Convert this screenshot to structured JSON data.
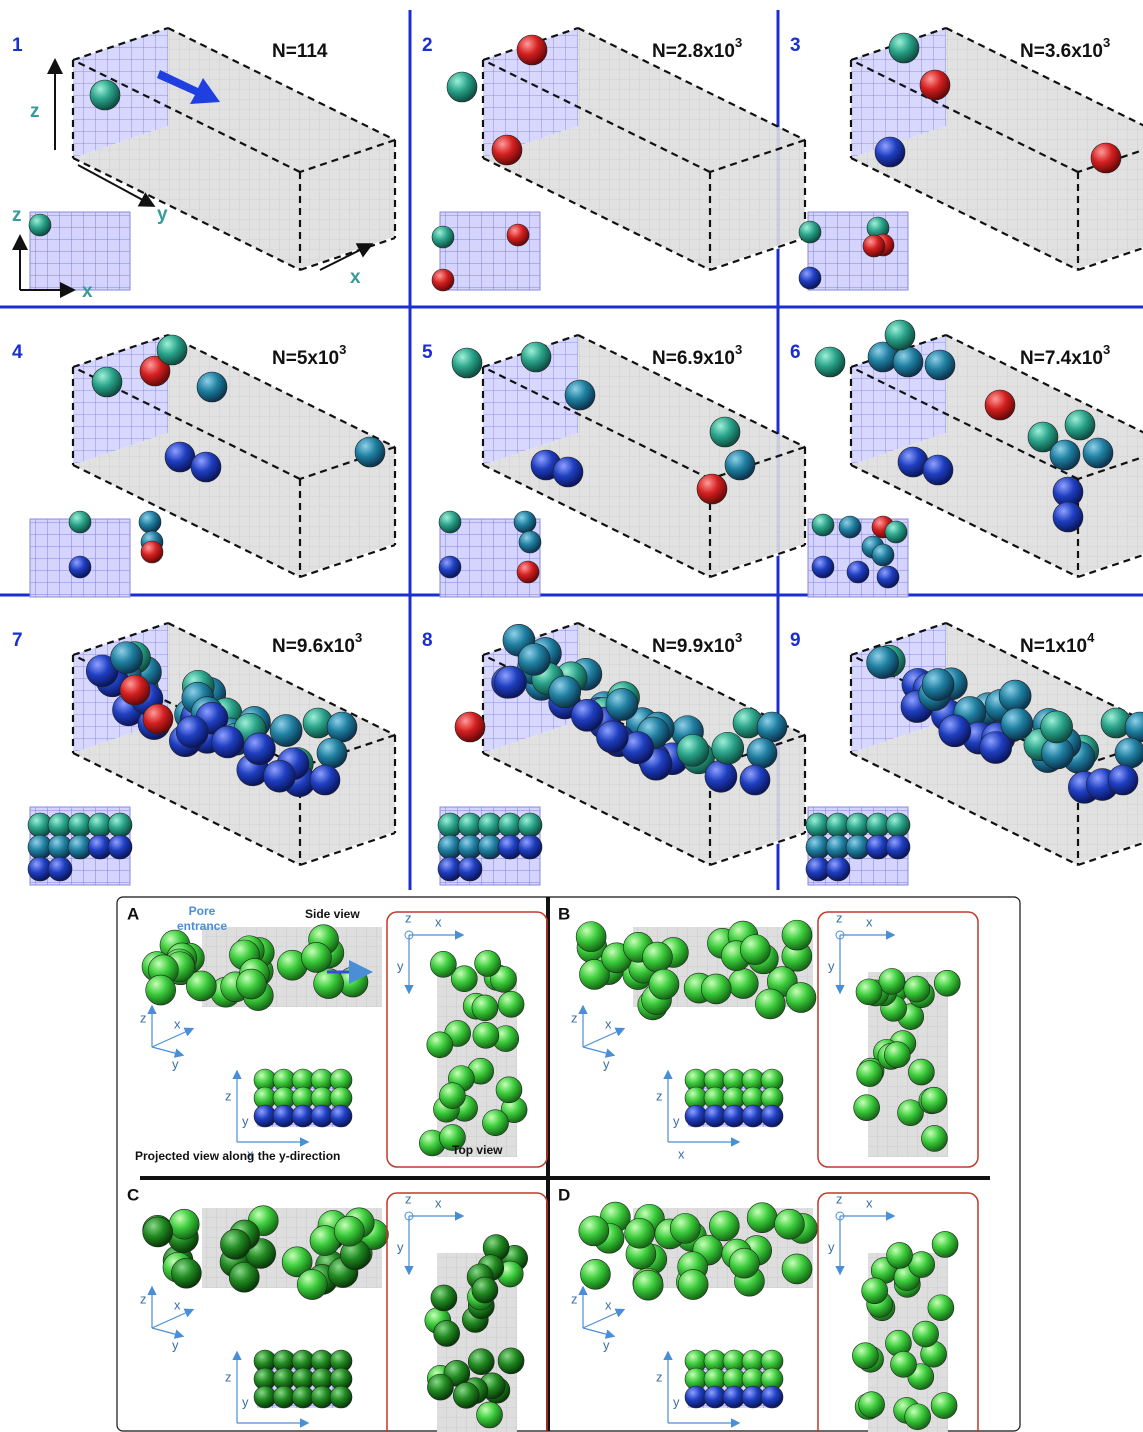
{
  "panels": [
    {
      "number": "1",
      "n_label": {
        "text": "N=114"
      }
    },
    {
      "number": "2",
      "n_label": {
        "text": "N=2.8x10",
        "exponent": "3"
      }
    },
    {
      "number": "3",
      "n_label": {
        "text": "N=3.6x10",
        "exponent": "3"
      }
    },
    {
      "number": "4",
      "n_label": {
        "text": "N=5x10",
        "exponent": "3"
      }
    },
    {
      "number": "5",
      "n_label": {
        "text": "N=6.9x10",
        "exponent": "3"
      }
    },
    {
      "number": "6",
      "n_label": {
        "text": "N=7.4x10",
        "exponent": "3"
      }
    },
    {
      "number": "7",
      "n_label": {
        "text": "N=9.6x10",
        "exponent": "3"
      }
    },
    {
      "number": "8",
      "n_label": {
        "text": "N=9.9x10",
        "exponent": "3"
      }
    },
    {
      "number": "9",
      "n_label": {
        "text": "N=1x10",
        "exponent": "4"
      }
    }
  ],
  "axis_labels": {
    "x": "x",
    "y": "y",
    "z": "z"
  },
  "views": [
    {
      "letter": "A"
    },
    {
      "letter": "B"
    },
    {
      "letter": "C"
    },
    {
      "letter": "D"
    }
  ],
  "view_labels": {
    "pore_entrance": [
      "Pore",
      "entrance"
    ],
    "side_view": "Side view",
    "projected_view": "Projected view  along the y-direction",
    "top_view": "Top view"
  }
}
